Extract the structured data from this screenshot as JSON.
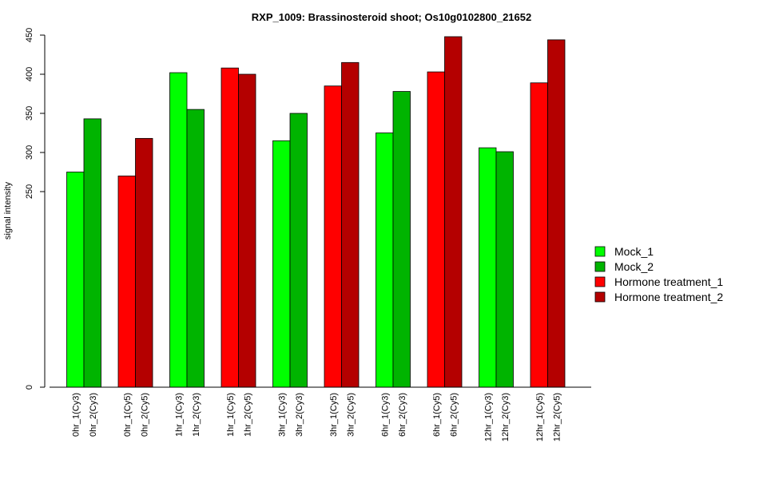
{
  "chart_data": {
    "type": "bar",
    "title": "RXP_1009: Brassinosteroid shoot; Os10g0102800_21652",
    "xlabel": "",
    "ylabel": "signal intensity",
    "ylim": [
      0,
      450
    ],
    "y_ticks": [
      0,
      250,
      300,
      350,
      400,
      450
    ],
    "legend_position": "right",
    "series": [
      {
        "name": "Mock_1",
        "color": "#00ff00"
      },
      {
        "name": "Mock_2",
        "color": "#00b400"
      },
      {
        "name": "Hormone treatment_1",
        "color": "#ff0000"
      },
      {
        "name": "Hormone treatment_2",
        "color": "#b40000"
      }
    ],
    "groups": [
      {
        "bars": [
          {
            "label": "0hr_1(Cy3)",
            "value": 275,
            "series": 0
          },
          {
            "label": "0hr_2(Cy3)",
            "value": 343,
            "series": 1
          }
        ]
      },
      {
        "bars": [
          {
            "label": "0hr_1(Cy5)",
            "value": 270,
            "series": 2
          },
          {
            "label": "0hr_2(Cy5)",
            "value": 318,
            "series": 3
          }
        ]
      },
      {
        "bars": [
          {
            "label": "1hr_1(Cy3)",
            "value": 402,
            "series": 0
          },
          {
            "label": "1hr_2(Cy3)",
            "value": 355,
            "series": 1
          }
        ]
      },
      {
        "bars": [
          {
            "label": "1hr_1(Cy5)",
            "value": 408,
            "series": 2
          },
          {
            "label": "1hr_2(Cy5)",
            "value": 400,
            "series": 3
          }
        ]
      },
      {
        "bars": [
          {
            "label": "3hr_1(Cy3)",
            "value": 315,
            "series": 0
          },
          {
            "label": "3hr_2(Cy3)",
            "value": 350,
            "series": 1
          }
        ]
      },
      {
        "bars": [
          {
            "label": "3hr_1(Cy5)",
            "value": 385,
            "series": 2
          },
          {
            "label": "3hr_2(Cy5)",
            "value": 415,
            "series": 3
          }
        ]
      },
      {
        "bars": [
          {
            "label": "6hr_1(Cy3)",
            "value": 325,
            "series": 0
          },
          {
            "label": "6hr_2(Cy3)",
            "value": 378,
            "series": 1
          }
        ]
      },
      {
        "bars": [
          {
            "label": "6hr_1(Cy5)",
            "value": 403,
            "series": 2
          },
          {
            "label": "6hr_2(Cy5)",
            "value": 448,
            "series": 3
          }
        ]
      },
      {
        "bars": [
          {
            "label": "12hr_1(Cy3)",
            "value": 306,
            "series": 0
          },
          {
            "label": "12hr_2(Cy3)",
            "value": 301,
            "series": 1
          }
        ]
      },
      {
        "bars": [
          {
            "label": "12hr_1(Cy5)",
            "value": 389,
            "series": 2
          },
          {
            "label": "12hr_2(Cy5)",
            "value": 444,
            "series": 3
          }
        ]
      }
    ]
  }
}
